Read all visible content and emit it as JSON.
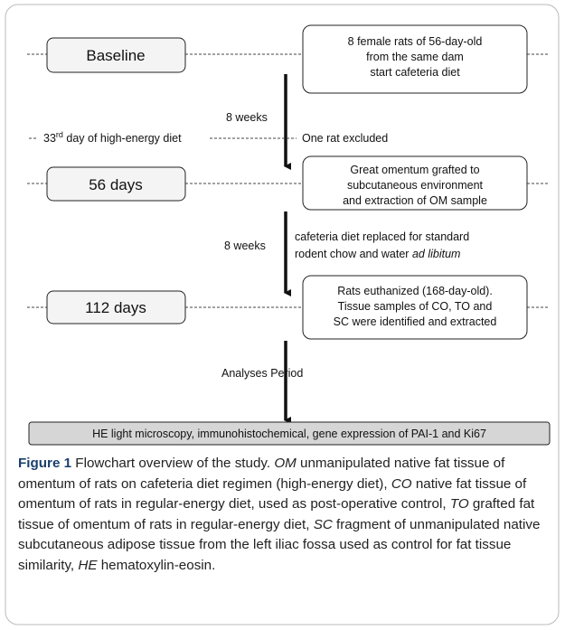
{
  "nodes": [
    {
      "label": "Baseline"
    },
    {
      "lines": [
        "8 female rats of 56-day-old",
        "from the same dam",
        "start cafeteria diet"
      ]
    },
    {
      "label": "56 days"
    },
    {
      "lines": [
        "Great omentum grafted to",
        "subcutaneous environment",
        "and extraction of OM sample"
      ]
    },
    {
      "label": "112 days"
    },
    {
      "lines": [
        "Rats euthanized (168-day-old).",
        "Tissue samples of CO, TO and",
        "SC were identified and extracted"
      ]
    },
    {
      "label": "HE light microscopy, immunohistochemical, gene expression of PAI-1 and Ki67"
    }
  ],
  "edges": [
    {
      "label": "8 weeks"
    },
    {
      "label": "8 weeks",
      "note": [
        "cafeteria diet replaced for standard",
        "rodent chow and water ",
        "ad libitum"
      ]
    },
    {
      "label": "Analyses Period"
    }
  ],
  "event": {
    "day": "33",
    "suffix": "rd",
    "text": " day of high-energy diet",
    "outcome": "One rat excluded"
  },
  "caption": {
    "label": "Figure 1",
    "parts": [
      {
        "text": " Flowchart overview of the study. "
      },
      {
        "text": "OM",
        "italic": true
      },
      {
        "text": " unmanipulated native fat tissue of omentum of rats on cafeteria diet regimen (high-energy diet), "
      },
      {
        "text": "CO",
        "italic": true
      },
      {
        "text": " native fat tissue of omentum of rats in regular-energy diet, used as post-operative control, "
      },
      {
        "text": "TO",
        "italic": true
      },
      {
        "text": " grafted fat tissue of omentum of rats in regular-energy diet, "
      },
      {
        "text": "SC",
        "italic": true
      },
      {
        "text": " fragment of unmanipulated native subcutaneous adipose tissue from the left iliac fossa used as control for fat tissue similarity, "
      },
      {
        "text": "HE",
        "italic": true
      },
      {
        "text": " hematoxylin-eosin."
      }
    ]
  }
}
